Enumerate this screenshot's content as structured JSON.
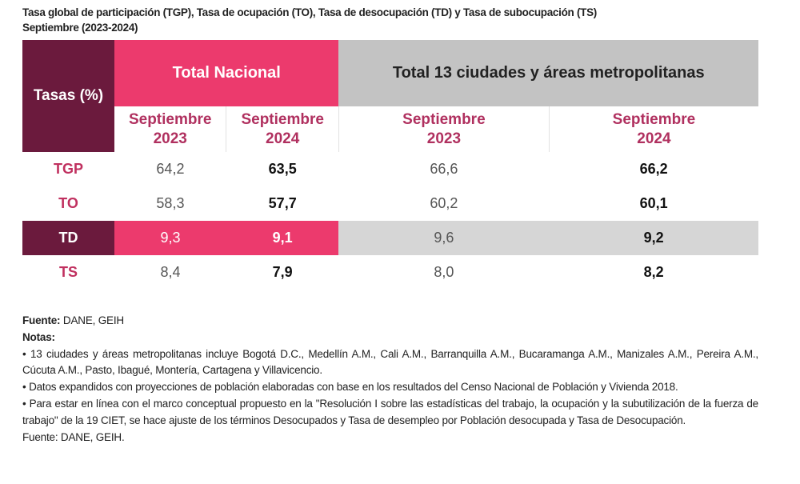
{
  "title": {
    "line1": "Tasa global de participación (TGP), Tasa de ocupación (TO), Tasa de desocupación (TD) y Tasa de subocupación (TS)",
    "line2": "Septiembre (2023-2024)"
  },
  "table": {
    "corner": "Tasas (%)",
    "groups": [
      "Total Nacional",
      "Total 13 ciudades y áreas metropolitanas"
    ],
    "subheaders": [
      [
        "Septiembre",
        "2023"
      ],
      [
        "Septiembre",
        "2024"
      ],
      [
        "Septiembre",
        "2023"
      ],
      [
        "Septiembre",
        "2024"
      ]
    ],
    "rows": [
      {
        "label": "TGP",
        "values": [
          "64,2",
          "63,5",
          "66,6",
          "66,2"
        ]
      },
      {
        "label": "TO",
        "values": [
          "58,3",
          "57,7",
          "60,2",
          "60,1"
        ]
      },
      {
        "label": "TD",
        "values": [
          "9,3",
          "9,1",
          "9,6",
          "9,2"
        ]
      },
      {
        "label": "TS",
        "values": [
          "8,4",
          "7,9",
          "8,0",
          "8,2"
        ]
      }
    ],
    "colors": {
      "maroon": "#6b1a3d",
      "pink": "#ec3a6d",
      "gray": "#c3c3c3"
    }
  },
  "footer": {
    "source_label": "Fuente:",
    "source": " DANE, GEIH",
    "notes_label": "Notas:",
    "notes": [
      "• 13 ciudades y áreas metropolitanas incluye Bogotá D.C., Medellín A.M., Cali A.M., Barranquilla A.M., Bucaramanga A.M., Manizales A.M., Pereira A.M., Cúcuta A.M., Pasto, Ibagué, Montería, Cartagena y Villavicencio.",
      "• Datos expandidos con proyecciones de población elaboradas con base en los resultados del Censo Nacional de Población y Vivienda 2018.",
      "• Para estar en línea con el marco conceptual propuesto en la \"Resolución I sobre las estadísticas del trabajo, la ocupación y la subutilización de la fuerza de trabajo\" de la 19 CIET, se hace ajuste de los términos Desocupados y Tasa de desempleo por Población desocupada y Tasa de Desocupación."
    ],
    "final_source": "Fuente: DANE, GEIH."
  }
}
